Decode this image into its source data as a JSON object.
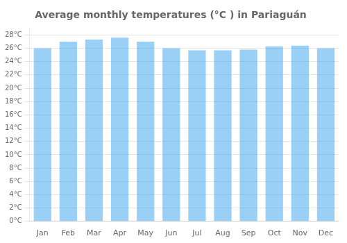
{
  "chart_data": {
    "type": "bar",
    "title": "Average monthly temperatures (°C ) in Pariaguán",
    "categories": [
      "Jan",
      "Feb",
      "Mar",
      "Apr",
      "May",
      "Jun",
      "Jul",
      "Aug",
      "Sep",
      "Oct",
      "Nov",
      "Dec"
    ],
    "values": [
      26.0,
      27.0,
      27.3,
      27.6,
      27.0,
      26.0,
      25.7,
      25.7,
      25.8,
      26.3,
      26.4,
      26.0
    ],
    "ylim": [
      0,
      29
    ],
    "yticks": [
      {
        "value": 0,
        "label": "0°C"
      },
      {
        "value": 2,
        "label": "2°C"
      },
      {
        "value": 4,
        "label": "4°C"
      },
      {
        "value": 6,
        "label": "6°C"
      },
      {
        "value": 8,
        "label": "8°C"
      },
      {
        "value": 10,
        "label": "10°C"
      },
      {
        "value": 12,
        "label": "12°C"
      },
      {
        "value": 14,
        "label": "14°C"
      },
      {
        "value": 16,
        "label": "16°C"
      },
      {
        "value": 18,
        "label": "18°C"
      },
      {
        "value": 20,
        "label": "20°C"
      },
      {
        "value": 22,
        "label": "22°C"
      },
      {
        "value": 24,
        "label": "24°C"
      },
      {
        "value": 26,
        "label": "26°C"
      },
      {
        "value": 28,
        "label": "28°C"
      }
    ],
    "grid": true
  }
}
